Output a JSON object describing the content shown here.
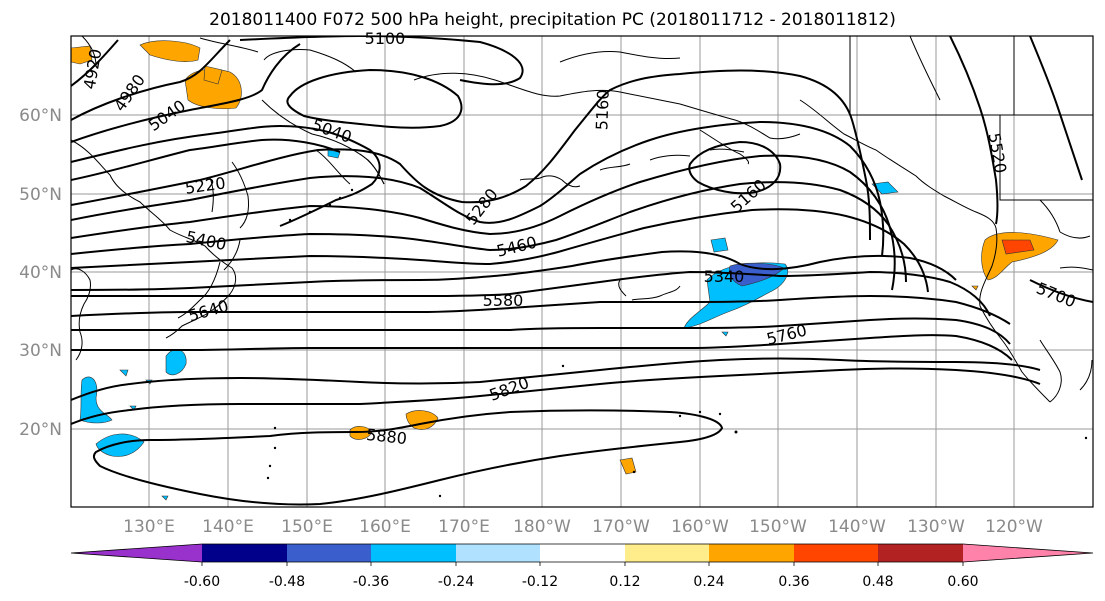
{
  "title": "2018011400 F072 500 hPa height, precipitation PC (2018011712 - 2018011812)",
  "map": {
    "lat_labels": [
      "60°N",
      "50°N",
      "40°N",
      "30°N",
      "20°N"
    ],
    "lon_labels": [
      "130°E",
      "140°E",
      "150°E",
      "160°E",
      "170°E",
      "180°W",
      "170°W",
      "160°W",
      "150°W",
      "140°W",
      "130°W",
      "120°W"
    ],
    "contour_labels": [
      "4920",
      "4980",
      "5040",
      "5100",
      "5040",
      "5160",
      "5220",
      "5280",
      "5160",
      "5520",
      "5400",
      "5460",
      "5340",
      "5580",
      "5640",
      "5700",
      "5760",
      "5820",
      "5880"
    ]
  },
  "colorbar": {
    "colors": [
      "#9932cc",
      "#00008b",
      "#3a5fcd",
      "#00bfff",
      "#b0e2ff",
      "#ffffff",
      "#ffec8b",
      "#ffa500",
      "#ff4500",
      "#b22222",
      "#ff82ab"
    ],
    "tick_labels": [
      "-0.60",
      "-0.48",
      "-0.36",
      "-0.24",
      "-0.12",
      "0.12",
      "0.24",
      "0.36",
      "0.48",
      "0.60"
    ]
  }
}
